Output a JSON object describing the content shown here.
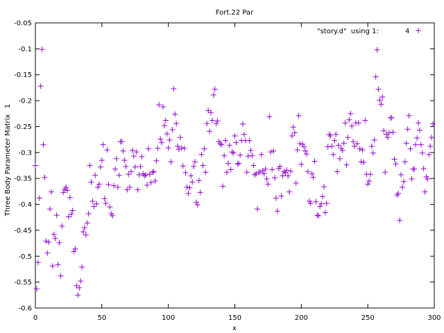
{
  "chart_data": {
    "type": "scatter",
    "title": "Fort.22 Par",
    "xlabel": "x",
    "ylabel": "Three Body Parameter Matrix",
    "ylabel_extra": "1",
    "xlim": [
      0,
      300
    ],
    "ylim": [
      -0.6,
      -0.05
    ],
    "grid": false,
    "legend_position": "top-right",
    "marker": "plus",
    "marker_color": "#9400d3",
    "x_ticks": [
      0,
      50,
      100,
      150,
      200,
      250,
      300
    ],
    "x_tick_labels": [
      "0",
      "50",
      "100",
      "150",
      "200",
      "250",
      "300"
    ],
    "y_ticks": [
      -0.6,
      -0.55,
      -0.5,
      -0.45,
      -0.4,
      -0.35,
      -0.3,
      -0.25,
      -0.2,
      -0.15,
      -0.1,
      -0.05
    ],
    "y_tick_labels": [
      "-0.6",
      "-0.55",
      "-0.5",
      "-0.45",
      "-0.4",
      "-0.35",
      "-0.3",
      "-0.25",
      "-0.2",
      "-0.15",
      "-0.1",
      "-0.05"
    ],
    "series": [
      {
        "name": "\"story.d\"  using 1:            4",
        "color": "#9400d3",
        "points": [
          [
            0,
            -0.325
          ],
          [
            1,
            -0.563
          ],
          [
            2,
            -0.512
          ],
          [
            3,
            -0.388
          ],
          [
            4,
            -0.172
          ],
          [
            5,
            -0.101
          ],
          [
            6,
            -0.285
          ],
          [
            7,
            -0.348
          ],
          [
            8,
            -0.471
          ],
          [
            9,
            -0.494
          ],
          [
            10,
            -0.473
          ],
          [
            11,
            -0.409
          ],
          [
            12,
            -0.376
          ],
          [
            13,
            -0.519
          ],
          [
            14,
            -0.458
          ],
          [
            15,
            -0.466
          ],
          [
            16,
            -0.421
          ],
          [
            17,
            -0.516
          ],
          [
            18,
            -0.474
          ],
          [
            19,
            -0.538
          ],
          [
            20,
            -0.442
          ],
          [
            21,
            -0.377
          ],
          [
            22,
            -0.371
          ],
          [
            23,
            -0.367
          ],
          [
            24,
            -0.373
          ],
          [
            25,
            -0.424
          ],
          [
            26,
            -0.387
          ],
          [
            27,
            -0.419
          ],
          [
            28,
            -0.412
          ],
          [
            29,
            -0.491
          ],
          [
            30,
            -0.486
          ],
          [
            31,
            -0.557
          ],
          [
            32,
            -0.575
          ],
          [
            33,
            -0.561
          ],
          [
            34,
            -0.548
          ],
          [
            35,
            -0.521
          ],
          [
            36,
            -0.453
          ],
          [
            37,
            -0.445
          ],
          [
            38,
            -0.459
          ],
          [
            39,
            -0.436
          ],
          [
            40,
            -0.418
          ],
          [
            41,
            -0.325
          ],
          [
            42,
            -0.357
          ],
          [
            43,
            -0.394
          ],
          [
            44,
            -0.404
          ],
          [
            45,
            -0.344
          ],
          [
            46,
            -0.399
          ],
          [
            47,
            -0.367
          ],
          [
            48,
            -0.361
          ],
          [
            49,
            -0.328
          ],
          [
            50,
            -0.315
          ],
          [
            51,
            -0.285
          ],
          [
            52,
            -0.389
          ],
          [
            53,
            -0.398
          ],
          [
            54,
            -0.295
          ],
          [
            55,
            -0.362
          ],
          [
            56,
            -0.405
          ],
          [
            57,
            -0.418
          ],
          [
            58,
            -0.422
          ],
          [
            59,
            -0.364
          ],
          [
            60,
            -0.332
          ],
          [
            61,
            -0.312
          ],
          [
            62,
            -0.367
          ],
          [
            63,
            -0.344
          ],
          [
            64,
            -0.279
          ],
          [
            65,
            -0.279
          ],
          [
            66,
            -0.297
          ],
          [
            67,
            -0.315
          ],
          [
            68,
            -0.327
          ],
          [
            69,
            -0.372
          ],
          [
            70,
            -0.342
          ],
          [
            71,
            -0.367
          ],
          [
            72,
            -0.337
          ],
          [
            73,
            -0.296
          ],
          [
            74,
            -0.307
          ],
          [
            75,
            -0.328
          ],
          [
            76,
            -0.299
          ],
          [
            77,
            -0.372
          ],
          [
            78,
            -0.343
          ],
          [
            79,
            -0.327
          ],
          [
            80,
            -0.308
          ],
          [
            81,
            -0.341
          ],
          [
            82,
            -0.345
          ],
          [
            83,
            -0.343
          ],
          [
            84,
            -0.363
          ],
          [
            85,
            -0.293
          ],
          [
            86,
            -0.342
          ],
          [
            87,
            -0.358
          ],
          [
            88,
            -0.338
          ],
          [
            89,
            -0.337
          ],
          [
            90,
            -0.355
          ],
          [
            91,
            -0.316
          ],
          [
            92,
            -0.292
          ],
          [
            93,
            -0.208
          ],
          [
            94,
            -0.274
          ],
          [
            95,
            -0.281
          ],
          [
            96,
            -0.212
          ],
          [
            97,
            -0.248
          ],
          [
            98,
            -0.238
          ],
          [
            99,
            -0.264
          ],
          [
            100,
            -0.291
          ],
          [
            101,
            -0.276
          ],
          [
            102,
            -0.318
          ],
          [
            103,
            -0.256
          ],
          [
            104,
            -0.177
          ],
          [
            105,
            -0.226
          ],
          [
            106,
            -0.244
          ],
          [
            107,
            -0.288
          ],
          [
            108,
            -0.294
          ],
          [
            109,
            -0.271
          ],
          [
            110,
            -0.291
          ],
          [
            111,
            -0.326
          ],
          [
            112,
            -0.292
          ],
          [
            113,
            -0.339
          ],
          [
            114,
            -0.367
          ],
          [
            115,
            -0.379
          ],
          [
            116,
            -0.368
          ],
          [
            117,
            -0.345
          ],
          [
            118,
            -0.357
          ],
          [
            119,
            -0.327
          ],
          [
            120,
            -0.318
          ],
          [
            121,
            -0.396
          ],
          [
            122,
            -0.401
          ],
          [
            123,
            -0.354
          ],
          [
            124,
            -0.377
          ],
          [
            125,
            -0.304
          ],
          [
            126,
            -0.325
          ],
          [
            127,
            -0.293
          ],
          [
            128,
            -0.338
          ],
          [
            129,
            -0.244
          ],
          [
            130,
            -0.219
          ],
          [
            131,
            -0.259
          ],
          [
            132,
            -0.223
          ],
          [
            133,
            -0.238
          ],
          [
            134,
            -0.189
          ],
          [
            135,
            -0.178
          ],
          [
            136,
            -0.244
          ],
          [
            137,
            -0.239
          ],
          [
            138,
            -0.279
          ],
          [
            139,
            -0.283
          ],
          [
            140,
            -0.285
          ],
          [
            141,
            -0.365
          ],
          [
            142,
            -0.306
          ],
          [
            143,
            -0.277
          ],
          [
            144,
            -0.338
          ],
          [
            145,
            -0.321
          ],
          [
            146,
            -0.286
          ],
          [
            147,
            -0.333
          ],
          [
            148,
            -0.299
          ],
          [
            149,
            -0.301
          ],
          [
            150,
            -0.268
          ],
          [
            151,
            -0.281
          ],
          [
            152,
            -0.322
          ],
          [
            153,
            -0.321
          ],
          [
            154,
            -0.305
          ],
          [
            155,
            -0.277
          ],
          [
            156,
            -0.245
          ],
          [
            157,
            -0.265
          ],
          [
            158,
            -0.277
          ],
          [
            159,
            -0.338
          ],
          [
            160,
            -0.307
          ],
          [
            161,
            -0.277
          ],
          [
            162,
            -0.296
          ],
          [
            163,
            -0.306
          ],
          [
            164,
            -0.325
          ],
          [
            165,
            -0.343
          ],
          [
            166,
            -0.341
          ],
          [
            167,
            -0.409
          ],
          [
            168,
            -0.338
          ],
          [
            169,
            -0.338
          ],
          [
            170,
            -0.304
          ],
          [
            171,
            -0.335
          ],
          [
            172,
            -0.341
          ],
          [
            173,
            -0.332
          ],
          [
            174,
            -0.351
          ],
          [
            175,
            -0.361
          ],
          [
            176,
            -0.231
          ],
          [
            177,
            -0.299
          ],
          [
            178,
            -0.333
          ],
          [
            179,
            -0.297
          ],
          [
            180,
            -0.349
          ],
          [
            181,
            -0.388
          ],
          [
            182,
            -0.413
          ],
          [
            183,
            -0.331
          ],
          [
            184,
            -0.327
          ],
          [
            185,
            -0.384
          ],
          [
            186,
            -0.345
          ],
          [
            187,
            -0.337
          ],
          [
            188,
            -0.339
          ],
          [
            189,
            -0.334
          ],
          [
            190,
            -0.345
          ],
          [
            191,
            -0.376
          ],
          [
            192,
            -0.336
          ],
          [
            193,
            -0.268
          ],
          [
            194,
            -0.251
          ],
          [
            195,
            -0.262
          ],
          [
            196,
            -0.359
          ],
          [
            197,
            -0.295
          ],
          [
            198,
            -0.229
          ],
          [
            199,
            -0.283
          ],
          [
            200,
            -0.323
          ],
          [
            201,
            -0.284
          ],
          [
            202,
            -0.289
          ],
          [
            203,
            -0.297
          ],
          [
            204,
            -0.303
          ],
          [
            205,
            -0.337
          ],
          [
            206,
            -0.394
          ],
          [
            207,
            -0.398
          ],
          [
            208,
            -0.341
          ],
          [
            209,
            -0.348
          ],
          [
            210,
            -0.317
          ],
          [
            211,
            -0.395
          ],
          [
            212,
            -0.421
          ],
          [
            213,
            -0.422
          ],
          [
            214,
            -0.404
          ],
          [
            215,
            -0.399
          ],
          [
            216,
            -0.385
          ],
          [
            217,
            -0.366
          ],
          [
            218,
            -0.416
          ],
          [
            219,
            -0.398
          ],
          [
            220,
            -0.289
          ],
          [
            221,
            -0.265
          ],
          [
            222,
            -0.268
          ],
          [
            223,
            -0.288
          ],
          [
            224,
            -0.304
          ],
          [
            225,
            -0.277
          ],
          [
            226,
            -0.265
          ],
          [
            227,
            -0.337
          ],
          [
            228,
            -0.286
          ],
          [
            229,
            -0.312
          ],
          [
            230,
            -0.292
          ],
          [
            231,
            -0.296
          ],
          [
            232,
            -0.282
          ],
          [
            233,
            -0.243
          ],
          [
            234,
            -0.324
          ],
          [
            235,
            -0.271
          ],
          [
            236,
            -0.237
          ],
          [
            237,
            -0.225
          ],
          [
            238,
            -0.249
          ],
          [
            239,
            -0.279
          ],
          [
            240,
            -0.288
          ],
          [
            241,
            -0.243
          ],
          [
            242,
            -0.283
          ],
          [
            243,
            -0.243
          ],
          [
            244,
            -0.293
          ],
          [
            245,
            -0.318
          ],
          [
            246,
            -0.295
          ],
          [
            247,
            -0.319
          ],
          [
            248,
            -0.238
          ],
          [
            249,
            -0.342
          ],
          [
            250,
            -0.361
          ],
          [
            251,
            -0.355
          ],
          [
            252,
            -0.342
          ],
          [
            253,
            -0.288
          ],
          [
            254,
            -0.301
          ],
          [
            255,
            -0.276
          ],
          [
            256,
            -0.154
          ],
          [
            257,
            -0.102
          ],
          [
            258,
            -0.178
          ],
          [
            259,
            -0.199
          ],
          [
            260,
            -0.207
          ],
          [
            261,
            -0.193
          ],
          [
            262,
            -0.258
          ],
          [
            263,
            -0.338
          ],
          [
            264,
            -0.265
          ],
          [
            265,
            -0.271
          ],
          [
            266,
            -0.262
          ],
          [
            267,
            -0.233
          ],
          [
            268,
            -0.233
          ],
          [
            269,
            -0.261
          ],
          [
            270,
            -0.313
          ],
          [
            271,
            -0.322
          ],
          [
            272,
            -0.382
          ],
          [
            273,
            -0.379
          ],
          [
            274,
            -0.431
          ],
          [
            275,
            -0.343
          ],
          [
            276,
            -0.367
          ],
          [
            277,
            -0.356
          ],
          [
            278,
            -0.318
          ],
          [
            279,
            -0.282
          ],
          [
            280,
            -0.255
          ],
          [
            281,
            -0.229
          ],
          [
            282,
            -0.293
          ],
          [
            283,
            -0.351
          ],
          [
            284,
            -0.332
          ],
          [
            285,
            -0.332
          ],
          [
            286,
            -0.285
          ],
          [
            287,
            -0.272
          ],
          [
            288,
            -0.243
          ],
          [
            289,
            -0.257
          ],
          [
            290,
            -0.285
          ],
          [
            291,
            -0.301
          ],
          [
            292,
            -0.331
          ],
          [
            293,
            -0.376
          ],
          [
            294,
            -0.347
          ],
          [
            295,
            -0.351
          ],
          [
            296,
            -0.304
          ],
          [
            297,
            -0.288
          ],
          [
            298,
            -0.271
          ],
          [
            299,
            -0.245
          ]
        ]
      }
    ]
  }
}
